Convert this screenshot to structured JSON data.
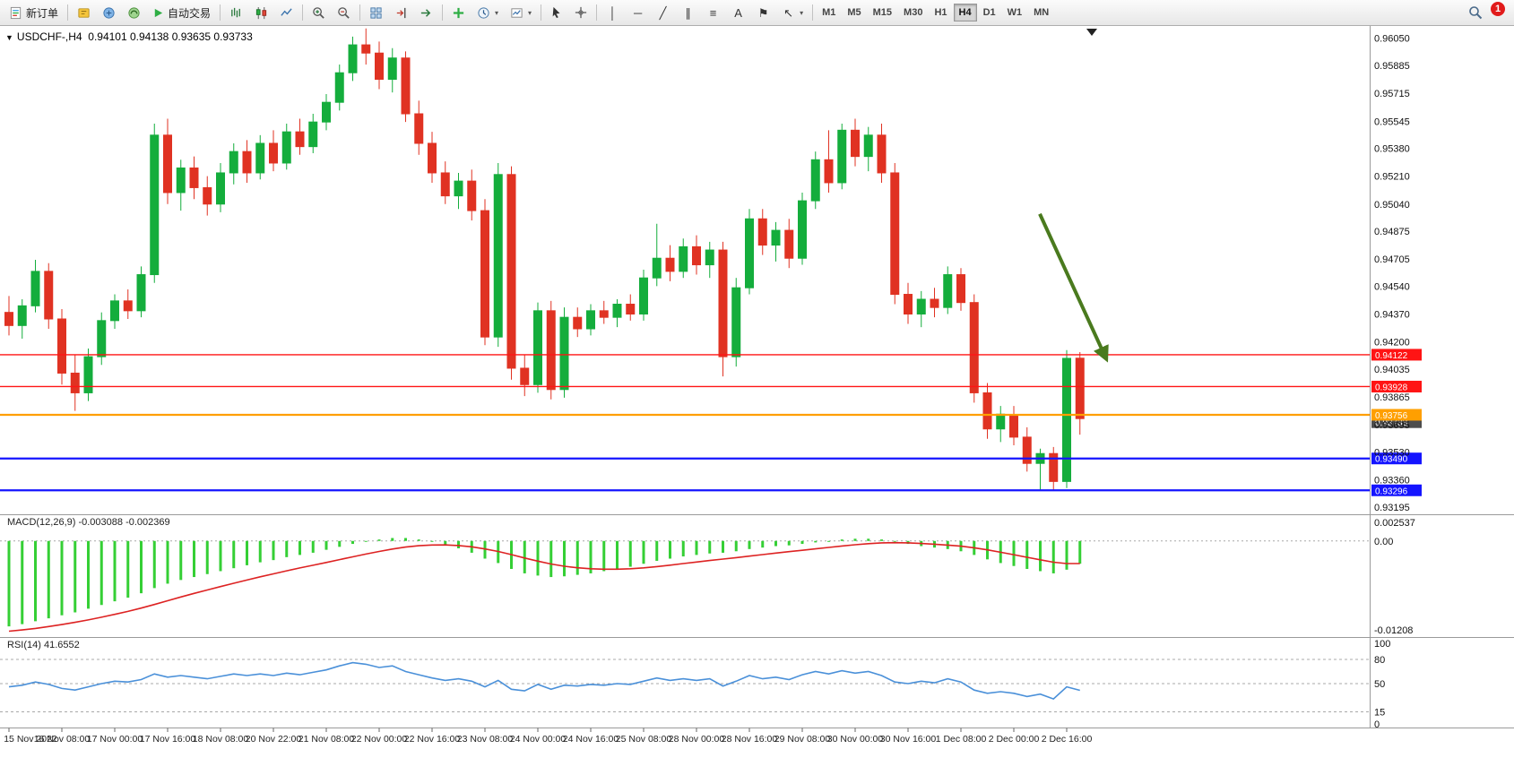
{
  "colors": {
    "up": "#14ad3c",
    "down": "#e03222",
    "macd_bar": "#35cf35",
    "macd_signal": "#dd2222",
    "rsi_line": "#4a90d9",
    "red_line": "#ff1414",
    "orange_line": "#ff9f00",
    "blue_line": "#1414ff",
    "arrow": "#4a7a1e",
    "axis_text": "#111111",
    "grid_dash": "#a8a8a8"
  },
  "window": {
    "symbol": "USDCHF-,H4",
    "ohlc_text": "0.94101 0.94138 0.93635 0.93733"
  },
  "toolbar": {
    "new_order_label": "新订单",
    "auto_trading_label": "自动交易",
    "timeframes": [
      "M1",
      "M5",
      "M15",
      "M30",
      "H1",
      "H4",
      "D1",
      "W1",
      "MN"
    ],
    "active_timeframe": "H4",
    "notification_count": "1",
    "line_tools": [
      {
        "name": "vertical-line-tool",
        "glyph": "│",
        "caret": false
      },
      {
        "name": "horizontal-line-tool",
        "glyph": "─",
        "caret": false
      },
      {
        "name": "trendline-tool",
        "glyph": "╱",
        "caret": false
      },
      {
        "name": "equidistant-channel-tool",
        "glyph": "∥",
        "caret": false
      },
      {
        "name": "fibonacci-tool",
        "glyph": "≡",
        "caret": false
      },
      {
        "name": "text-tool",
        "glyph": "A",
        "caret": false
      },
      {
        "name": "label-tool",
        "glyph": "⚑",
        "caret": false
      },
      {
        "name": "arrows-tool",
        "glyph": "↖",
        "caret": true
      }
    ]
  },
  "chart": {
    "macd_header": "MACD(12,26,9) -0.003088 -0.002369",
    "rsi_header": "RSI(14) 41.6552",
    "price_axis": [
      "0.96050",
      "0.95885",
      "0.95715",
      "0.95545",
      "0.95380",
      "0.95210",
      "0.95040",
      "0.94875",
      "0.94705",
      "0.94540",
      "0.94370",
      "0.94200",
      "0.94035",
      "0.93865",
      "0.93695",
      "0.93530",
      "0.93360",
      "0.93195"
    ],
    "hlines": [
      {
        "price": 0.94122,
        "label": "0.94122",
        "color": "#ff1414",
        "width": 1.4
      },
      {
        "price": 0.93928,
        "label": "0.93928",
        "color": "#ff1414",
        "width": 1.4
      },
      {
        "price": 0.93756,
        "label": "0.93756",
        "color": "#ff9f00",
        "width": 2.2
      },
      {
        "price": 0.9349,
        "label": "0.93490",
        "color": "#1414ff",
        "width": 2.2
      },
      {
        "price": 0.93296,
        "label": "0.93296",
        "color": "#1414ff",
        "width": 2.2
      }
    ],
    "bid_label": {
      "price": 0.93733,
      "label": "0.93733",
      "color": "#4d4d4d"
    },
    "macd_axis": [
      {
        "label": "0.002537",
        "value": 0.002537
      },
      {
        "label": "0.00",
        "value": 0
      },
      {
        "label": "-0.01208",
        "value": -0.01208
      }
    ],
    "rsi_axis": [
      {
        "label": "100",
        "value": 100
      },
      {
        "label": "80",
        "value": 80
      },
      {
        "label": "50",
        "value": 50
      },
      {
        "label": "15",
        "value": 15
      },
      {
        "label": "0",
        "value": 0
      }
    ]
  },
  "chart_data": [
    {
      "type": "candlestick",
      "symbol": "USDCHF",
      "timeframe": "H4",
      "title": "USDCHF-,H4",
      "current_ohlc": {
        "open": 0.94101,
        "high": 0.94138,
        "low": 0.93635,
        "close": 0.93733
      },
      "ylim": [
        0.9315,
        0.96125
      ],
      "x_labels": [
        {
          "index": 0,
          "label": "15 Nov 2022"
        },
        {
          "index": 4,
          "label": "16 Nov 08:00"
        },
        {
          "index": 8,
          "label": "17 Nov 00:00"
        },
        {
          "index": 12,
          "label": "17 Nov 16:00"
        },
        {
          "index": 16,
          "label": "18 Nov 08:00"
        },
        {
          "index": 20,
          "label": "20 Nov 22:00"
        },
        {
          "index": 24,
          "label": "21 Nov 08:00"
        },
        {
          "index": 28,
          "label": "22 Nov 00:00"
        },
        {
          "index": 32,
          "label": "22 Nov 16:00"
        },
        {
          "index": 36,
          "label": "23 Nov 08:00"
        },
        {
          "index": 40,
          "label": "24 Nov 00:00"
        },
        {
          "index": 44,
          "label": "24 Nov 16:00"
        },
        {
          "index": 48,
          "label": "25 Nov 08:00"
        },
        {
          "index": 52,
          "label": "28 Nov 00:00"
        },
        {
          "index": 56,
          "label": "28 Nov 16:00"
        },
        {
          "index": 60,
          "label": "29 Nov 08:00"
        },
        {
          "index": 64,
          "label": "30 Nov 00:00"
        },
        {
          "index": 68,
          "label": "30 Nov 16:00"
        },
        {
          "index": 72,
          "label": "1 Dec 08:00"
        },
        {
          "index": 76,
          "label": "2 Dec 00:00"
        },
        {
          "index": 80,
          "label": "2 Dec 16:00"
        }
      ],
      "candles": [
        [
          0.9438,
          0.9448,
          0.9424,
          0.943
        ],
        [
          0.943,
          0.9446,
          0.9422,
          0.9442
        ],
        [
          0.9442,
          0.947,
          0.9438,
          0.9463
        ],
        [
          0.9463,
          0.9468,
          0.9428,
          0.9434
        ],
        [
          0.9434,
          0.944,
          0.9394,
          0.9401
        ],
        [
          0.9401,
          0.9412,
          0.9378,
          0.9389
        ],
        [
          0.9389,
          0.9416,
          0.9384,
          0.9411
        ],
        [
          0.9411,
          0.9438,
          0.9406,
          0.9433
        ],
        [
          0.9433,
          0.9449,
          0.9428,
          0.9445
        ],
        [
          0.9445,
          0.9452,
          0.9434,
          0.9439
        ],
        [
          0.9439,
          0.9466,
          0.9435,
          0.9461
        ],
        [
          0.9461,
          0.9553,
          0.9456,
          0.9546
        ],
        [
          0.9546,
          0.9556,
          0.9504,
          0.9511
        ],
        [
          0.9511,
          0.9531,
          0.95,
          0.9526
        ],
        [
          0.9526,
          0.9533,
          0.9507,
          0.9514
        ],
        [
          0.9514,
          0.9521,
          0.9497,
          0.9504
        ],
        [
          0.9504,
          0.9529,
          0.9499,
          0.9523
        ],
        [
          0.9523,
          0.9541,
          0.9516,
          0.9536
        ],
        [
          0.9536,
          0.9543,
          0.9517,
          0.9523
        ],
        [
          0.9523,
          0.9546,
          0.9519,
          0.9541
        ],
        [
          0.9541,
          0.9549,
          0.9524,
          0.9529
        ],
        [
          0.9529,
          0.9553,
          0.9525,
          0.9548
        ],
        [
          0.9548,
          0.9556,
          0.9534,
          0.9539
        ],
        [
          0.9539,
          0.9559,
          0.9535,
          0.9554
        ],
        [
          0.9554,
          0.9571,
          0.9549,
          0.9566
        ],
        [
          0.9566,
          0.9589,
          0.9561,
          0.9584
        ],
        [
          0.9584,
          0.9606,
          0.9579,
          0.9601
        ],
        [
          0.9601,
          0.9611,
          0.9589,
          0.9596
        ],
        [
          0.9596,
          0.9603,
          0.9574,
          0.958
        ],
        [
          0.958,
          0.9599,
          0.9572,
          0.9593
        ],
        [
          0.9593,
          0.9597,
          0.9554,
          0.9559
        ],
        [
          0.9559,
          0.9567,
          0.9534,
          0.9541
        ],
        [
          0.9541,
          0.9548,
          0.9517,
          0.9523
        ],
        [
          0.9523,
          0.953,
          0.9504,
          0.9509
        ],
        [
          0.9509,
          0.9523,
          0.9501,
          0.9518
        ],
        [
          0.9518,
          0.9525,
          0.9494,
          0.95
        ],
        [
          0.95,
          0.9507,
          0.9418,
          0.9423
        ],
        [
          0.9423,
          0.9529,
          0.9417,
          0.9522
        ],
        [
          0.9522,
          0.9527,
          0.9397,
          0.9404
        ],
        [
          0.9404,
          0.9412,
          0.9387,
          0.9394
        ],
        [
          0.9394,
          0.9444,
          0.9389,
          0.9439
        ],
        [
          0.9439,
          0.9445,
          0.9385,
          0.9391
        ],
        [
          0.9391,
          0.9441,
          0.9386,
          0.9435
        ],
        [
          0.9435,
          0.9441,
          0.9423,
          0.9428
        ],
        [
          0.9428,
          0.9443,
          0.9424,
          0.9439
        ],
        [
          0.9439,
          0.9445,
          0.9431,
          0.9435
        ],
        [
          0.9435,
          0.9446,
          0.9429,
          0.9443
        ],
        [
          0.9443,
          0.9449,
          0.9433,
          0.9437
        ],
        [
          0.9437,
          0.9464,
          0.9433,
          0.9459
        ],
        [
          0.9459,
          0.9492,
          0.9454,
          0.9471
        ],
        [
          0.9471,
          0.9479,
          0.9457,
          0.9463
        ],
        [
          0.9463,
          0.9483,
          0.9459,
          0.9478
        ],
        [
          0.9478,
          0.9485,
          0.9461,
          0.9467
        ],
        [
          0.9467,
          0.9481,
          0.9459,
          0.9476
        ],
        [
          0.9476,
          0.9481,
          0.9399,
          0.9411
        ],
        [
          0.9411,
          0.9459,
          0.9405,
          0.9453
        ],
        [
          0.9453,
          0.9501,
          0.9449,
          0.9495
        ],
        [
          0.9495,
          0.9501,
          0.9473,
          0.9479
        ],
        [
          0.9479,
          0.9493,
          0.9469,
          0.9488
        ],
        [
          0.9488,
          0.9495,
          0.9465,
          0.9471
        ],
        [
          0.9471,
          0.9511,
          0.9467,
          0.9506
        ],
        [
          0.9506,
          0.9536,
          0.9501,
          0.9531
        ],
        [
          0.9531,
          0.9549,
          0.9511,
          0.9517
        ],
        [
          0.9517,
          0.9553,
          0.9513,
          0.9549
        ],
        [
          0.9549,
          0.9556,
          0.9527,
          0.9533
        ],
        [
          0.9533,
          0.9551,
          0.9524,
          0.9546
        ],
        [
          0.9546,
          0.9553,
          0.9517,
          0.9523
        ],
        [
          0.9523,
          0.9529,
          0.9443,
          0.9449
        ],
        [
          0.9449,
          0.9456,
          0.9431,
          0.9437
        ],
        [
          0.9437,
          0.9451,
          0.9429,
          0.9446
        ],
        [
          0.9446,
          0.9453,
          0.9435,
          0.9441
        ],
        [
          0.9441,
          0.9466,
          0.9437,
          0.9461
        ],
        [
          0.9461,
          0.9465,
          0.9439,
          0.9444
        ],
        [
          0.9444,
          0.9449,
          0.9383,
          0.9389
        ],
        [
          0.9389,
          0.9395,
          0.9361,
          0.9367
        ],
        [
          0.9367,
          0.9381,
          0.9359,
          0.9376
        ],
        [
          0.9375,
          0.9381,
          0.9357,
          0.9362
        ],
        [
          0.9362,
          0.9368,
          0.9341,
          0.9346
        ],
        [
          0.9346,
          0.9355,
          0.933,
          0.9352
        ],
        [
          0.9352,
          0.9356,
          0.933,
          0.9335
        ],
        [
          0.9335,
          0.9415,
          0.9331,
          0.941
        ],
        [
          0.94101,
          0.94138,
          0.93635,
          0.93733
        ]
      ]
    },
    {
      "type": "bar",
      "name": "MACD(12,26,9)",
      "current": {
        "macd": -0.003088,
        "signal": -0.002369
      },
      "signal_period": 9,
      "ylim": [
        -0.0128,
        0.0035
      ],
      "values": [
        -0.0116,
        -0.0113,
        -0.0109,
        -0.0105,
        -0.0101,
        -0.0097,
        -0.0092,
        -0.0087,
        -0.0082,
        -0.0077,
        -0.0071,
        -0.0064,
        -0.0058,
        -0.0053,
        -0.0049,
        -0.0045,
        -0.0041,
        -0.0037,
        -0.0033,
        -0.0029,
        -0.0026,
        -0.0022,
        -0.0019,
        -0.0016,
        -0.0012,
        -0.0008,
        -0.0004,
        -0.0001,
        0.0002,
        0.0004,
        0.0004,
        0.0002,
        -0.0001,
        -0.0005,
        -0.001,
        -0.0016,
        -0.0024,
        -0.003,
        -0.0038,
        -0.0044,
        -0.0047,
        -0.0049,
        -0.0048,
        -0.0046,
        -0.0044,
        -0.0041,
        -0.0038,
        -0.0035,
        -0.0031,
        -0.0027,
        -0.0024,
        -0.0021,
        -0.0019,
        -0.0017,
        -0.0016,
        -0.0014,
        -0.0011,
        -0.0009,
        -0.0007,
        -0.0006,
        -0.0004,
        -0.0002,
        0.0,
        0.0002,
        0.0003,
        0.0003,
        0.0002,
        -0.0001,
        -0.0004,
        -0.0007,
        -0.0009,
        -0.0011,
        -0.0014,
        -0.0019,
        -0.0025,
        -0.003,
        -0.0034,
        -0.0038,
        -0.0041,
        -0.0044,
        -0.0039,
        -0.003088
      ]
    },
    {
      "type": "line",
      "name": "RSI(14)",
      "current": 41.6552,
      "levels": [
        80,
        50,
        15
      ],
      "ylim": [
        0,
        100
      ],
      "values": [
        46,
        48,
        52,
        49,
        44,
        42,
        46,
        50,
        53,
        52,
        55,
        62,
        58,
        60,
        58,
        56,
        59,
        62,
        60,
        62,
        60,
        63,
        61,
        64,
        67,
        72,
        76,
        74,
        70,
        72,
        65,
        61,
        57,
        54,
        56,
        53,
        46,
        54,
        43,
        41,
        49,
        43,
        48,
        47,
        49,
        48,
        50,
        49,
        53,
        57,
        54,
        56,
        54,
        56,
        47,
        53,
        60,
        56,
        58,
        55,
        61,
        65,
        62,
        66,
        63,
        65,
        60,
        52,
        50,
        53,
        51,
        56,
        52,
        42,
        38,
        40,
        38,
        34,
        37,
        31,
        46,
        41.6552
      ]
    }
  ],
  "annotations": {
    "arrow": {
      "color": "#4a7a1e",
      "from_price": 0.9498,
      "to_price": 0.9412,
      "note": "down-arrow pointing to 0.94122 resistance"
    }
  }
}
